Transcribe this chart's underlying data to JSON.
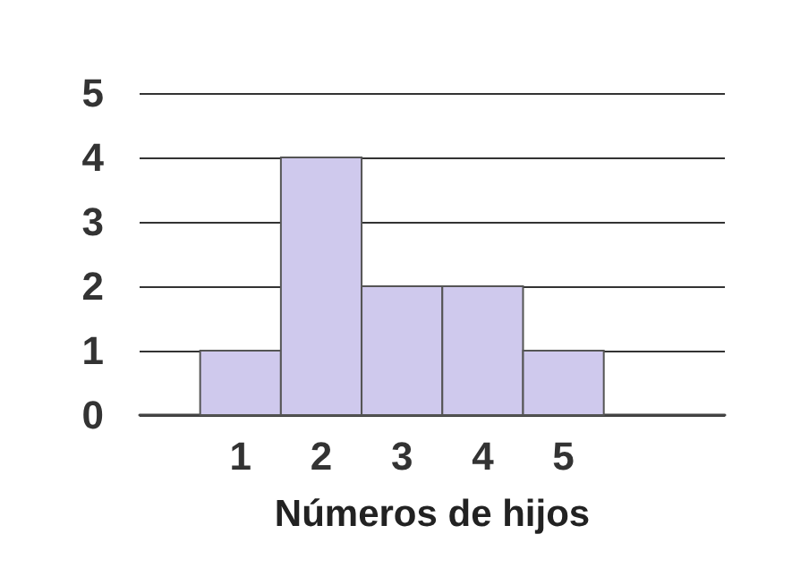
{
  "chart_data": {
    "type": "histogram",
    "xlabel": "Números de hijos",
    "bins": [
      0.5,
      1.5,
      2.5,
      3.5,
      4.5,
      5.5
    ],
    "values": [
      1,
      4,
      2,
      2,
      1
    ],
    "color": "#cfc9ed",
    "xlim": [
      -0.25,
      7
    ],
    "xticks": [
      1,
      2,
      3,
      4,
      5
    ],
    "ylim": [
      0,
      5
    ],
    "yticks": [
      0,
      1,
      2,
      3,
      4,
      5
    ],
    "grid": "y"
  }
}
